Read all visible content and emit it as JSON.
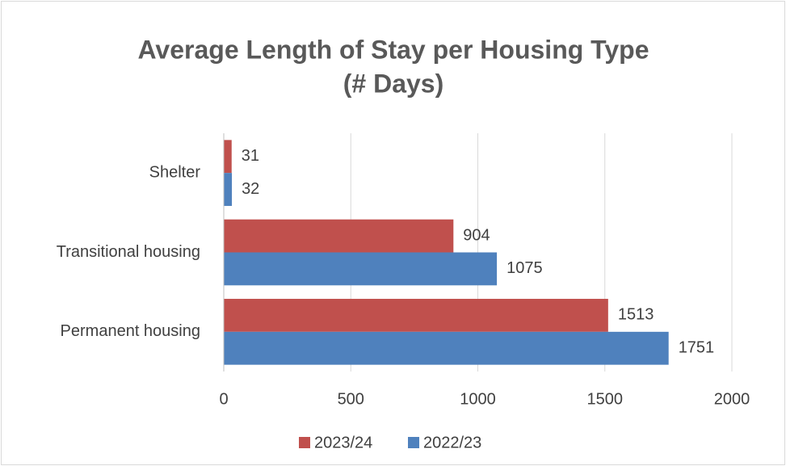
{
  "chart_data": {
    "type": "hbar",
    "title": [
      "Average Length of Stay per Housing Type",
      "(# Days)"
    ],
    "categories": [
      "Shelter",
      "Transitional housing",
      "Permanent housing"
    ],
    "series": [
      {
        "name": "2023/24",
        "color": "#c0504d",
        "values": [
          31,
          904,
          1513
        ]
      },
      {
        "name": "2022/23",
        "color": "#4f81bd",
        "values": [
          32,
          1075,
          1751
        ]
      }
    ],
    "xlim": [
      0,
      2000
    ],
    "xticks": [
      0,
      500,
      1000,
      1500,
      2000
    ],
    "grid": true,
    "legend": "bottom"
  }
}
